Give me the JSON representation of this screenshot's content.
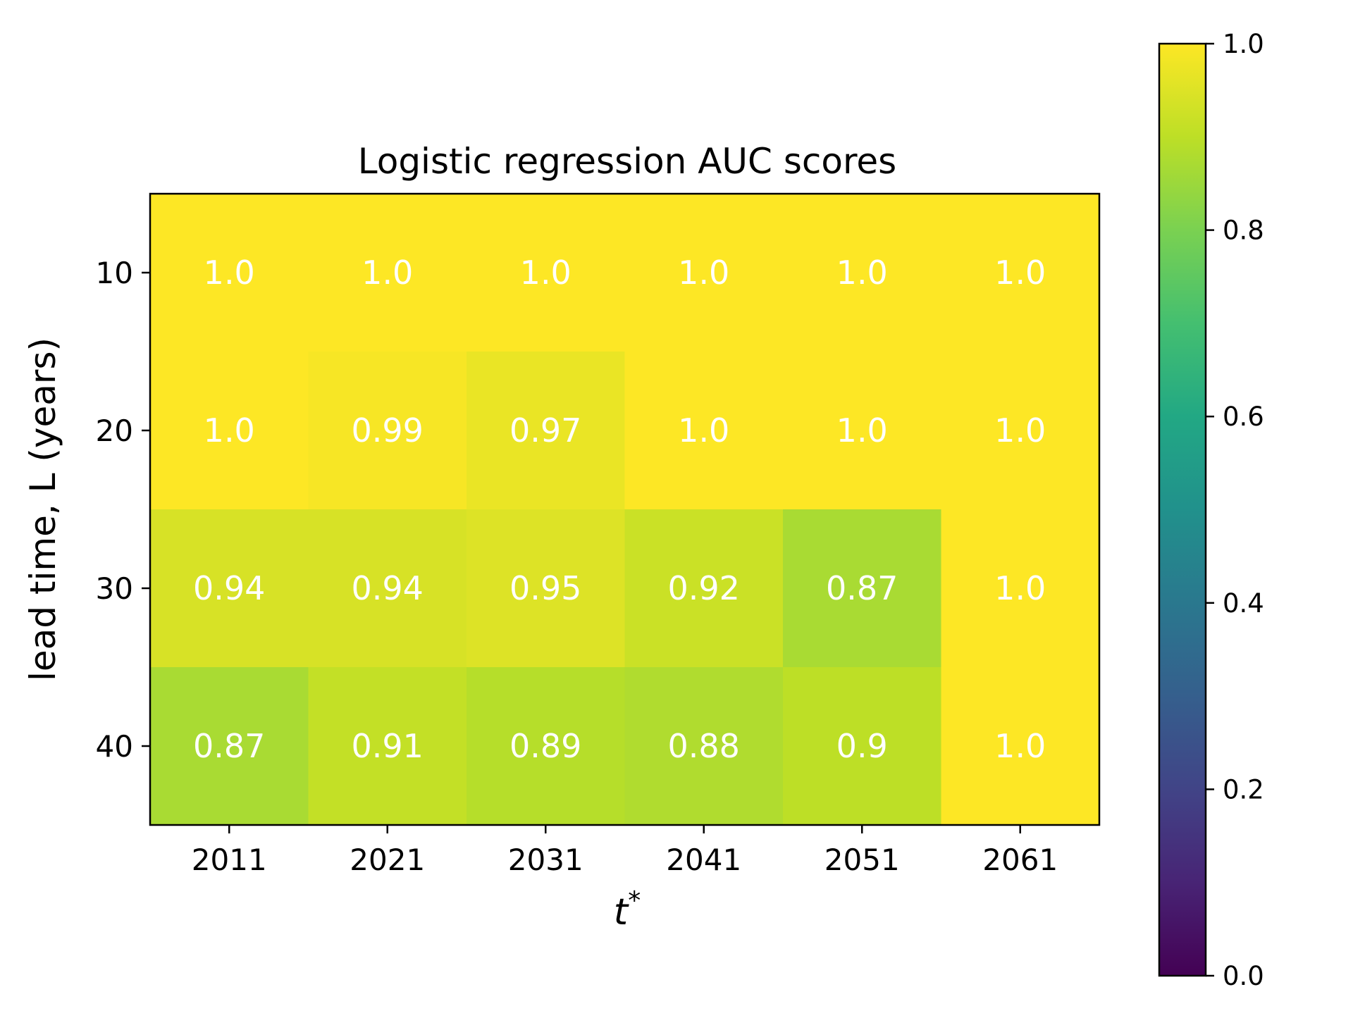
{
  "chart_data": {
    "type": "heatmap",
    "title": "Logistic regression AUC scores",
    "xlabel": "t",
    "xlabel_superscript": "*",
    "ylabel": "lead time, L (years)",
    "x_categories": [
      "2011",
      "2021",
      "2031",
      "2041",
      "2051",
      "2061"
    ],
    "y_categories": [
      "10",
      "20",
      "30",
      "40"
    ],
    "values": [
      [
        1.0,
        1.0,
        1.0,
        1.0,
        1.0,
        1.0
      ],
      [
        1.0,
        0.99,
        0.97,
        1.0,
        1.0,
        1.0
      ],
      [
        0.94,
        0.94,
        0.95,
        0.92,
        0.87,
        1.0
      ],
      [
        0.87,
        0.91,
        0.89,
        0.88,
        0.9,
        1.0
      ]
    ],
    "cell_labels": [
      [
        "1.0",
        "1.0",
        "1.0",
        "1.0",
        "1.0",
        "1.0"
      ],
      [
        "1.0",
        "0.99",
        "0.97",
        "1.0",
        "1.0",
        "1.0"
      ],
      [
        "0.94",
        "0.94",
        "0.95",
        "0.92",
        "0.87",
        "1.0"
      ],
      [
        "0.87",
        "0.91",
        "0.89",
        "0.88",
        "0.9",
        "1.0"
      ]
    ],
    "colormap": "viridis",
    "colorbar": {
      "range": [
        0.0,
        1.0
      ],
      "ticks": [
        "0.0",
        "0.2",
        "0.4",
        "0.6",
        "0.8",
        "1.0"
      ]
    },
    "annotation_color": "#ffffff",
    "grid": false
  }
}
